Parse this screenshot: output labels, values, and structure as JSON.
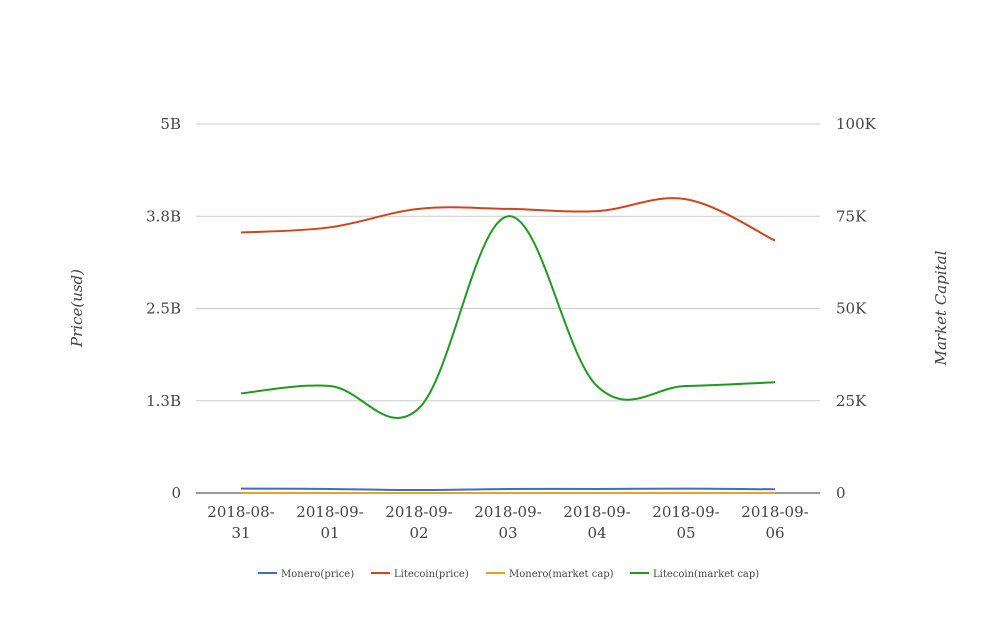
{
  "chart_data": {
    "type": "line",
    "categories": [
      "2018-08-31",
      "2018-09-01",
      "2018-09-02",
      "2018-09-03",
      "2018-09-04",
      "2018-09-05",
      "2018-09-06"
    ],
    "y_left": {
      "label": "Price(usd)",
      "range": [
        0,
        5000000000
      ],
      "ticks": [
        {
          "value": 0,
          "label": "0"
        },
        {
          "value": 1250000000,
          "label": "1.3B"
        },
        {
          "value": 2500000000,
          "label": "2.5B"
        },
        {
          "value": 3750000000,
          "label": "3.8B"
        },
        {
          "value": 5000000000,
          "label": "5B"
        }
      ]
    },
    "y_right": {
      "label": "Market Capital",
      "range": [
        0,
        100000
      ],
      "ticks": [
        {
          "value": 0,
          "label": "0"
        },
        {
          "value": 25000,
          "label": "25K"
        },
        {
          "value": 50000,
          "label": "50K"
        },
        {
          "value": 75000,
          "label": "75K"
        },
        {
          "value": 100000,
          "label": "100K"
        }
      ]
    },
    "grid": true,
    "legend_position": "bottom",
    "series": [
      {
        "name": "Monero(price)",
        "axis": "left",
        "color": "#3c6fc4",
        "values": [
          60000000,
          55000000,
          40000000,
          55000000,
          55000000,
          60000000,
          50000000
        ]
      },
      {
        "name": "Litecoin(price)",
        "axis": "left",
        "color": "#d0451b",
        "values": [
          3530000000,
          3600000000,
          3850000000,
          3850000000,
          3820000000,
          3980000000,
          3420000000
        ]
      },
      {
        "name": "Monero(market cap)",
        "axis": "right",
        "color": "#f0a020",
        "values": [
          0,
          0,
          0,
          0,
          0,
          0,
          0
        ]
      },
      {
        "name": "Litecoin(market cap)",
        "axis": "right",
        "color": "#1f9a1f",
        "values": [
          27000,
          29000,
          23000,
          75000,
          29000,
          29000,
          30000
        ]
      }
    ]
  }
}
